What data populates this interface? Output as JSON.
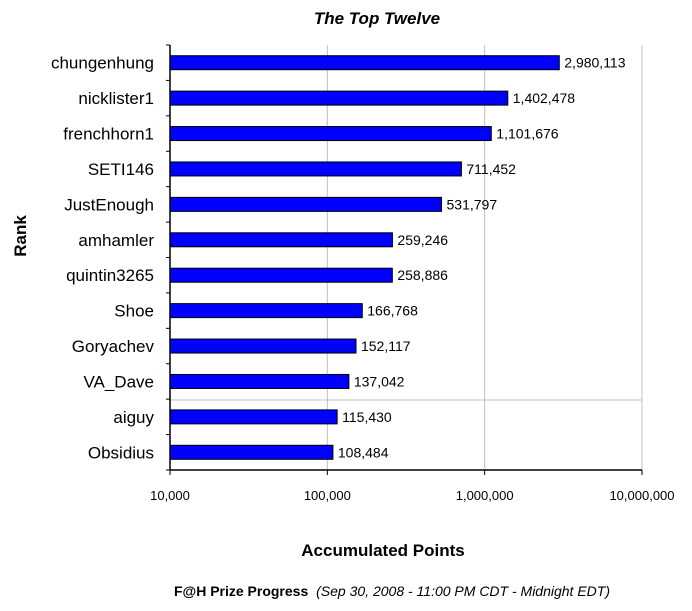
{
  "chart_data": {
    "type": "bar",
    "orientation": "horizontal",
    "title": "The Top Twelve",
    "xlabel": "Accumulated Points",
    "ylabel": "Rank",
    "x_scale": "log",
    "xlim": [
      10000,
      10000000
    ],
    "x_ticks": [
      "10,000",
      "100,000",
      "1,000,000",
      "10,000,000"
    ],
    "x_tick_values": [
      10000,
      100000,
      1000000,
      10000000
    ],
    "categories": [
      "chungenhung",
      "nicklister1",
      "frenchhorn1",
      "SETI146",
      "JustEnough",
      "amhamler",
      "quintin3265",
      "Shoe",
      "Goryachev",
      "VA_Dave",
      "aiguy",
      "Obsidius"
    ],
    "values": [
      2980113,
      1402478,
      1101676,
      711452,
      531797,
      259246,
      258886,
      166768,
      152117,
      137042,
      115430,
      108484
    ],
    "value_labels": [
      "2,980,113",
      "1,402,478",
      "1,101,676",
      "711,452",
      "531,797",
      "259,246",
      "258,886",
      "166,768",
      "152,117",
      "137,042",
      "115,430",
      "108,484"
    ],
    "bar_color": "#0000ff",
    "grid": "vertical",
    "legend": "none"
  },
  "footer": {
    "bold": "F@H Prize Progress",
    "italic": "(Sep 30, 2008 - 11:00 PM CDT - Midnight EDT)"
  }
}
